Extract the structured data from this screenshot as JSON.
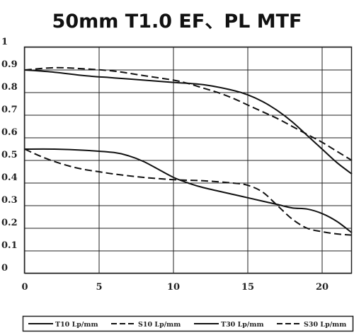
{
  "chart_data": {
    "type": "line",
    "title": "50mm T1.0 EF、PL  MTF",
    "xlabel": "",
    "ylabel": "",
    "xlim": [
      0,
      22
    ],
    "ylim": [
      0,
      1
    ],
    "grid": true,
    "legend_position": "bottom",
    "x_ticks": [
      "0",
      "5",
      "10",
      "15",
      "20"
    ],
    "x_tick_values": [
      0,
      5,
      10,
      15,
      20
    ],
    "y_ticks": [
      "0",
      "0.1",
      "0.2",
      "0.3",
      "0.4",
      "0.5",
      "0.6",
      "0.7",
      "0.8",
      "0.9",
      "1"
    ],
    "y_tick_values": [
      0,
      0.1,
      0.2,
      0.3,
      0.4,
      0.5,
      0.6,
      0.7,
      0.8,
      0.9,
      1.0
    ],
    "series": [
      {
        "name": "T10 Lp/mm",
        "style": "solid",
        "x": [
          0,
          2,
          4,
          6,
          8,
          10,
          12,
          14,
          15,
          16,
          17,
          18,
          19,
          20,
          21,
          22
        ],
        "y": [
          0.9,
          0.89,
          0.875,
          0.865,
          0.855,
          0.845,
          0.835,
          0.81,
          0.79,
          0.76,
          0.72,
          0.67,
          0.61,
          0.55,
          0.49,
          0.44
        ]
      },
      {
        "name": "S10 Lp/mm",
        "style": "dashed",
        "x": [
          0,
          2,
          4,
          6,
          8,
          10,
          11,
          12,
          13,
          14,
          15,
          16,
          17,
          18,
          19,
          20,
          21,
          22
        ],
        "y": [
          0.9,
          0.91,
          0.905,
          0.895,
          0.875,
          0.855,
          0.84,
          0.82,
          0.8,
          0.775,
          0.745,
          0.715,
          0.685,
          0.65,
          0.615,
          0.58,
          0.54,
          0.5
        ]
      },
      {
        "name": "T30 Lp/mm",
        "style": "solid",
        "x": [
          0,
          2,
          4,
          6,
          7,
          8,
          9,
          10,
          11,
          12,
          14,
          15,
          16,
          17,
          18,
          19,
          20,
          21,
          22
        ],
        "y": [
          0.55,
          0.55,
          0.545,
          0.535,
          0.52,
          0.495,
          0.46,
          0.425,
          0.4,
          0.38,
          0.35,
          0.335,
          0.32,
          0.305,
          0.29,
          0.285,
          0.265,
          0.23,
          0.18
        ]
      },
      {
        "name": "S30 Lp/mm",
        "style": "dashed",
        "x": [
          0,
          1,
          2,
          3,
          4,
          5,
          6,
          8,
          10,
          12,
          14,
          15,
          16,
          17,
          18,
          19,
          20,
          21,
          22
        ],
        "y": [
          0.55,
          0.52,
          0.495,
          0.475,
          0.46,
          0.45,
          0.44,
          0.425,
          0.415,
          0.41,
          0.4,
          0.39,
          0.36,
          0.3,
          0.24,
          0.2,
          0.185,
          0.175,
          0.17
        ]
      }
    ]
  }
}
